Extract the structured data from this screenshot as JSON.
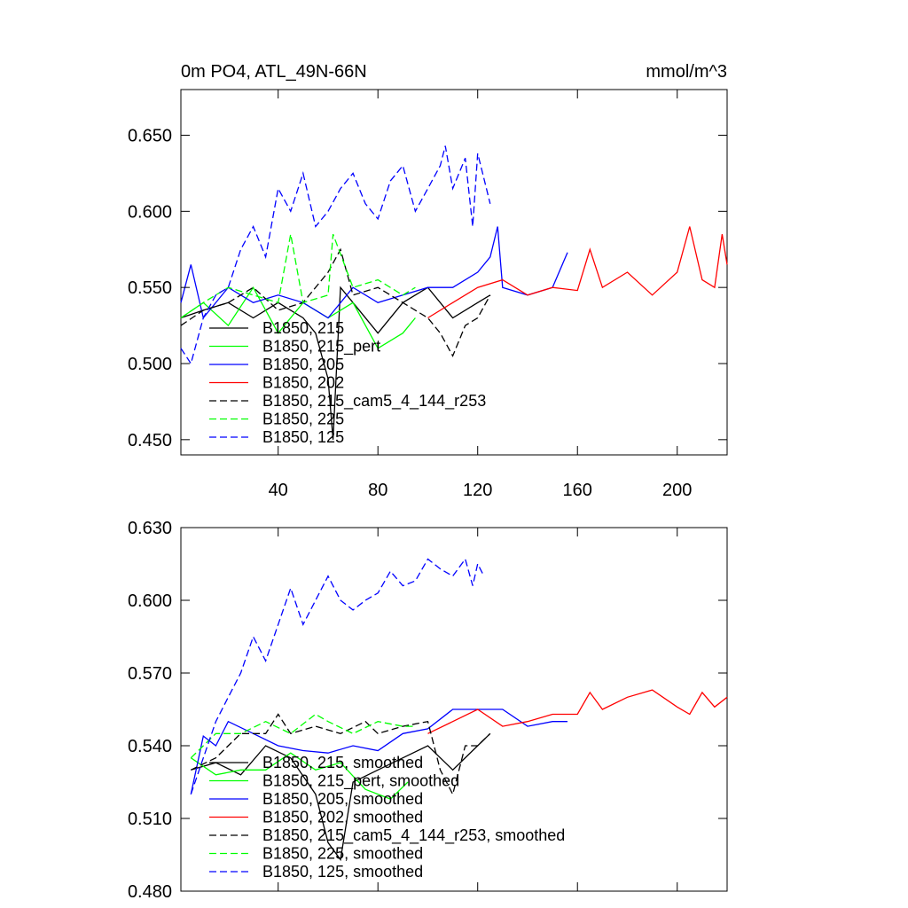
{
  "colors": {
    "black": "#000000",
    "green": "#00ff00",
    "blue": "#0000ff",
    "red": "#ff0000"
  },
  "chart_data": [
    {
      "type": "line",
      "title": "0m PO4, ATL_49N-66N",
      "units": "mmol/m^3",
      "xlim": [
        1,
        220
      ],
      "ylim": [
        0.44,
        0.68
      ],
      "x_ticks": [
        40,
        80,
        120,
        160,
        200
      ],
      "x_tick_labels": [
        "40",
        "80",
        "120",
        "160",
        "200"
      ],
      "y_ticks": [
        0.45,
        0.5,
        0.55,
        0.6,
        0.65
      ],
      "y_tick_labels": [
        "0.450",
        "0.500",
        "0.550",
        "0.600",
        "0.650"
      ],
      "legend_position": "bottom-left",
      "series": [
        {
          "name": "B1850, 215",
          "color": "#000000",
          "dash": "solid",
          "x": [
            1,
            10,
            20,
            30,
            40,
            50,
            55,
            60,
            62,
            65,
            70,
            80,
            90,
            100,
            110,
            120,
            125
          ],
          "y": [
            0.53,
            0.535,
            0.54,
            0.53,
            0.54,
            0.53,
            0.52,
            0.49,
            0.45,
            0.55,
            0.54,
            0.52,
            0.54,
            0.55,
            0.53,
            0.54,
            0.545
          ]
        },
        {
          "name": "B1850, 215_pert",
          "color": "#00ff00",
          "dash": "solid",
          "x": [
            1,
            10,
            20,
            30,
            40,
            50,
            60,
            70,
            80,
            90,
            95
          ],
          "y": [
            0.53,
            0.54,
            0.525,
            0.55,
            0.52,
            0.54,
            0.53,
            0.54,
            0.51,
            0.52,
            0.53
          ]
        },
        {
          "name": "B1850, 205",
          "color": "#0000ff",
          "dash": "solid",
          "x": [
            1,
            5,
            10,
            20,
            30,
            40,
            50,
            60,
            70,
            80,
            90,
            100,
            110,
            120,
            125,
            128,
            130,
            140,
            150,
            156
          ],
          "y": [
            0.54,
            0.565,
            0.53,
            0.55,
            0.54,
            0.545,
            0.54,
            0.53,
            0.55,
            0.54,
            0.545,
            0.55,
            0.55,
            0.56,
            0.57,
            0.59,
            0.55,
            0.545,
            0.55,
            0.573
          ]
        },
        {
          "name": "B1850, 202",
          "color": "#ff0000",
          "dash": "solid",
          "x": [
            100,
            110,
            120,
            130,
            140,
            150,
            160,
            165,
            170,
            180,
            190,
            200,
            205,
            210,
            215,
            218,
            220
          ],
          "y": [
            0.53,
            0.54,
            0.55,
            0.555,
            0.545,
            0.55,
            0.548,
            0.575,
            0.55,
            0.56,
            0.545,
            0.56,
            0.59,
            0.555,
            0.55,
            0.585,
            0.565
          ]
        },
        {
          "name": "B1850, 215_cam5_4_144_r253",
          "color": "#000000",
          "dash": "dashed",
          "x": [
            1,
            10,
            20,
            30,
            40,
            50,
            60,
            65,
            70,
            80,
            90,
            100,
            105,
            110,
            115,
            120,
            125
          ],
          "y": [
            0.525,
            0.535,
            0.54,
            0.55,
            0.535,
            0.54,
            0.56,
            0.575,
            0.545,
            0.55,
            0.54,
            0.53,
            0.52,
            0.505,
            0.525,
            0.53,
            0.545
          ]
        },
        {
          "name": "B1850, 225",
          "color": "#00ff00",
          "dash": "dashed",
          "x": [
            1,
            10,
            20,
            30,
            40,
            45,
            50,
            60,
            62,
            70,
            80,
            90,
            95
          ],
          "y": [
            0.53,
            0.54,
            0.55,
            0.545,
            0.54,
            0.585,
            0.54,
            0.545,
            0.585,
            0.55,
            0.555,
            0.545,
            0.55
          ]
        },
        {
          "name": "B1850, 125",
          "color": "#0000ff",
          "dash": "dashed",
          "x": [
            1,
            5,
            10,
            15,
            20,
            25,
            30,
            35,
            40,
            45,
            50,
            55,
            60,
            65,
            70,
            75,
            80,
            85,
            90,
            95,
            100,
            105,
            107,
            110,
            115,
            118,
            120,
            122,
            125
          ],
          "y": [
            0.51,
            0.5,
            0.53,
            0.545,
            0.55,
            0.575,
            0.59,
            0.57,
            0.615,
            0.6,
            0.625,
            0.59,
            0.6,
            0.615,
            0.625,
            0.605,
            0.595,
            0.62,
            0.63,
            0.6,
            0.615,
            0.63,
            0.643,
            0.615,
            0.635,
            0.59,
            0.638,
            0.625,
            0.605
          ]
        }
      ]
    },
    {
      "type": "line",
      "xlim": [
        1,
        220
      ],
      "ylim": [
        0.48,
        0.63
      ],
      "x_ticks": [
        40,
        80,
        120,
        160,
        200
      ],
      "y_ticks": [
        0.48,
        0.51,
        0.54,
        0.57,
        0.6,
        0.63
      ],
      "y_tick_labels": [
        "0.480",
        "0.510",
        "0.540",
        "0.570",
        "0.600",
        "0.630"
      ],
      "legend_position": "bottom-left",
      "series": [
        {
          "name": "B1850, 215, smoothed",
          "color": "#000000",
          "dash": "solid",
          "x": [
            5,
            15,
            25,
            35,
            45,
            55,
            60,
            65,
            70,
            80,
            90,
            100,
            110,
            120,
            125
          ],
          "y": [
            0.53,
            0.533,
            0.528,
            0.54,
            0.535,
            0.52,
            0.5,
            0.493,
            0.525,
            0.53,
            0.535,
            0.54,
            0.53,
            0.54,
            0.545
          ]
        },
        {
          "name": "B1850, 215_pert, smoothed",
          "color": "#00ff00",
          "dash": "solid",
          "x": [
            5,
            15,
            25,
            35,
            45,
            55,
            65,
            75,
            85,
            92
          ],
          "y": [
            0.535,
            0.528,
            0.53,
            0.53,
            0.537,
            0.53,
            0.533,
            0.522,
            0.518,
            0.525
          ]
        },
        {
          "name": "B1850, 205, smoothed",
          "color": "#0000ff",
          "dash": "solid",
          "x": [
            5,
            10,
            15,
            20,
            30,
            40,
            50,
            60,
            70,
            80,
            90,
            100,
            110,
            120,
            130,
            140,
            150,
            156
          ],
          "y": [
            0.52,
            0.544,
            0.54,
            0.55,
            0.545,
            0.54,
            0.538,
            0.537,
            0.54,
            0.538,
            0.545,
            0.547,
            0.555,
            0.555,
            0.555,
            0.548,
            0.55,
            0.55
          ]
        },
        {
          "name": "B1850, 202, smoothed",
          "color": "#ff0000",
          "dash": "solid",
          "x": [
            100,
            110,
            120,
            130,
            140,
            150,
            160,
            165,
            170,
            180,
            190,
            200,
            205,
            210,
            215,
            220
          ],
          "y": [
            0.545,
            0.55,
            0.555,
            0.548,
            0.55,
            0.553,
            0.553,
            0.562,
            0.555,
            0.56,
            0.563,
            0.556,
            0.553,
            0.562,
            0.556,
            0.56
          ]
        },
        {
          "name": "B1850, 215_cam5_4_144_r253, smoothed",
          "color": "#000000",
          "dash": "dashed",
          "x": [
            5,
            15,
            25,
            35,
            40,
            45,
            55,
            65,
            75,
            80,
            90,
            100,
            105,
            110,
            115,
            120,
            125
          ],
          "y": [
            0.53,
            0.535,
            0.545,
            0.545,
            0.553,
            0.545,
            0.548,
            0.545,
            0.55,
            0.545,
            0.548,
            0.55,
            0.53,
            0.52,
            0.54,
            0.54,
            0.545
          ]
        },
        {
          "name": "B1850, 225, smoothed",
          "color": "#00ff00",
          "dash": "dashed",
          "x": [
            5,
            15,
            25,
            35,
            45,
            55,
            60,
            70,
            80,
            90,
            95
          ],
          "y": [
            0.535,
            0.545,
            0.545,
            0.55,
            0.545,
            0.553,
            0.55,
            0.545,
            0.55,
            0.548,
            0.548
          ]
        },
        {
          "name": "B1850, 125, smoothed",
          "color": "#0000ff",
          "dash": "dashed",
          "x": [
            5,
            10,
            15,
            20,
            25,
            30,
            35,
            40,
            45,
            50,
            55,
            60,
            65,
            70,
            75,
            80,
            85,
            90,
            95,
            100,
            105,
            110,
            115,
            118,
            120,
            122
          ],
          "y": [
            0.52,
            0.535,
            0.55,
            0.56,
            0.57,
            0.585,
            0.575,
            0.59,
            0.605,
            0.59,
            0.6,
            0.61,
            0.6,
            0.596,
            0.6,
            0.603,
            0.612,
            0.606,
            0.608,
            0.617,
            0.613,
            0.61,
            0.617,
            0.606,
            0.615,
            0.611
          ]
        }
      ]
    }
  ]
}
